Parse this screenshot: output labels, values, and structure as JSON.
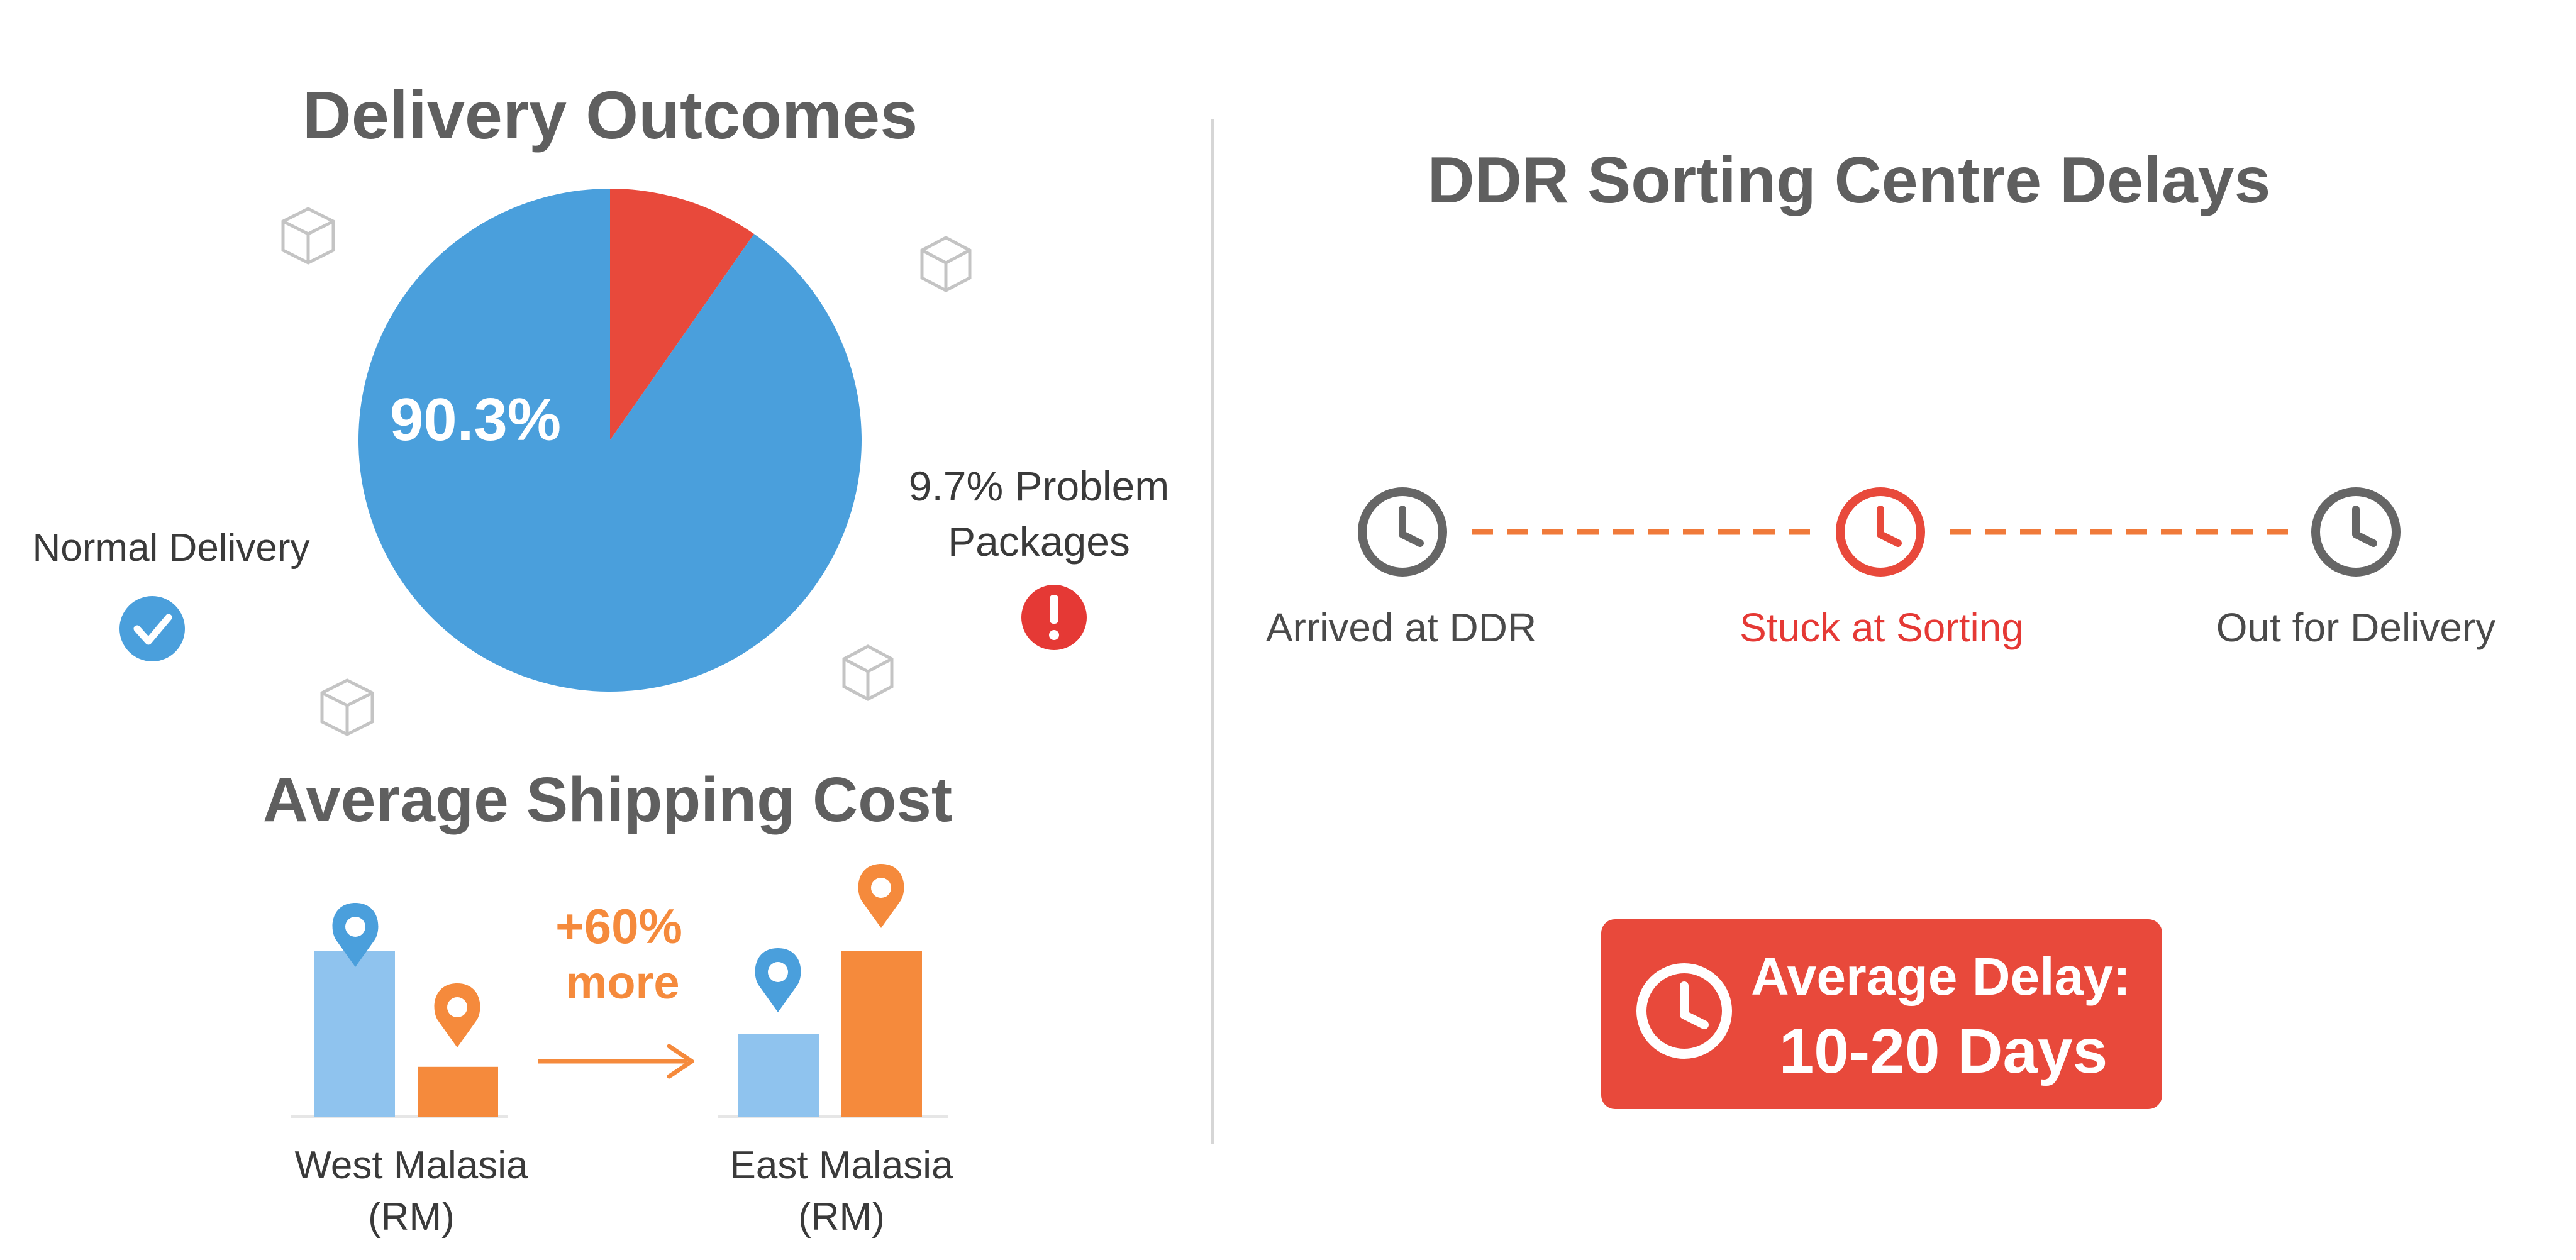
{
  "outcomes": {
    "title": "Delivery Outcomes",
    "normal_label": "Normal Delivery",
    "problem_label_line1": "9.7% Problem",
    "problem_label_line2": "Packages"
  },
  "shipping": {
    "title": "Average Shipping Cost",
    "increase_line1": "+60%",
    "increase_line2": "more",
    "west_line1": "West Malasia",
    "west_line2": "(RM)",
    "east_line1": "East Malasia",
    "east_line2": "(RM)"
  },
  "ddr": {
    "title": "DDR Sorting Centre Delays",
    "stages": [
      {
        "label": "Arrived at DDR",
        "color": "#4a4a4a"
      },
      {
        "label": "Stuck at Sorting",
        "color": "#e53935"
      },
      {
        "label": "Out for Delivery",
        "color": "#4a4a4a"
      }
    ],
    "delay_line1": "Average Delay:",
    "delay_line2": "10-20 Days"
  },
  "colors": {
    "blue": "#4a9fdc",
    "red": "#e8493b",
    "orange": "#f58a3c",
    "light_blue": "#8fc3ee",
    "dashed_line": "#f07a3a"
  },
  "chart_data": [
    {
      "type": "pie",
      "title": "Delivery Outcomes",
      "slices": [
        {
          "label": "9.7%",
          "value": 9.7,
          "color": "#e8493b"
        },
        {
          "label": "90.3%",
          "value": 90.3,
          "color": "#4a9fdc"
        }
      ]
    },
    {
      "type": "bar",
      "title": "Average Shipping Cost",
      "annotation": "+60% more",
      "groups": [
        {
          "name": "West Malasia (RM)",
          "bars": [
            {
              "value": 1.0,
              "color": "#8fc3ee"
            },
            {
              "value": 0.3,
              "color": "#f58a3c"
            }
          ]
        },
        {
          "name": "East Malasia (RM)",
          "bars": [
            {
              "value": 0.5,
              "color": "#8fc3ee"
            },
            {
              "value": 1.0,
              "color": "#f58a3c"
            }
          ]
        }
      ]
    }
  ]
}
